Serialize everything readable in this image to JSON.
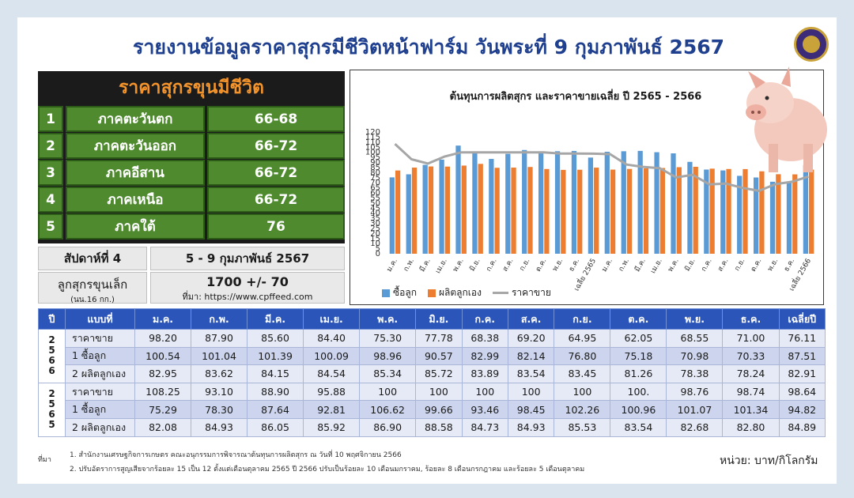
{
  "title": "รายงานข้อมูลราคาสุกรมีชีวิตหน้าฟาร์ม วันพระที่ 9 กุมภาพันธ์ 2567",
  "price_panel": {
    "heading": "ราคาสุกรขุนมีชีวิต",
    "rows": [
      {
        "num": "1",
        "region": "ภาคตะวันตก",
        "price": "66-68"
      },
      {
        "num": "2",
        "region": "ภาคตะวันออก",
        "price": "66-72"
      },
      {
        "num": "3",
        "region": "ภาคอีสาน",
        "price": "66-72"
      },
      {
        "num": "4",
        "region": "ภาคเหนือ",
        "price": "66-72"
      },
      {
        "num": "5",
        "region": "ภาคใต้",
        "price": "76"
      }
    ],
    "week_label": "สัปดาห์ที่ 4",
    "week_range": "5 - 9 กุมภาพันธ์ 2567",
    "piglet_label": "ลูกสุกรขุนเล็ก",
    "piglet_weight": "(นน.16 กก.)",
    "piglet_price": "1700 +/- 70",
    "piglet_source": "ที่มา: https://www.cpffeed.com"
  },
  "chart_data": {
    "type": "bar",
    "title": "ต้นทุนการผลิตสุกร และราคาขายเฉลี่ย ปี 2565 - 2566",
    "categories": [
      "ม.ค.",
      "ก.พ.",
      "มี.ค.",
      "เม.ย.",
      "พ.ค.",
      "มิ.ย.",
      "ก.ค.",
      "ส.ค.",
      "ก.ย.",
      "ต.ค.",
      "พ.ย.",
      "ธ.ค.",
      "เฉลี่ย 2565",
      "ม.ค.",
      "ก.พ.",
      "มี.ค.",
      "เม.ย.",
      "พ.ค.",
      "มิ.ย.",
      "ก.ค.",
      "ส.ค.",
      "ก.ย.",
      "ต.ค.",
      "พ.ย.",
      "ธ.ค.",
      "เฉลี่ย 2566"
    ],
    "series": [
      {
        "name": "ซื้อลูก",
        "type": "bar",
        "color": "#5b9bd5",
        "values": [
          75.29,
          78.3,
          87.64,
          92.81,
          106.62,
          99.66,
          93.46,
          98.45,
          102.26,
          100.96,
          101.07,
          101.34,
          94.82,
          100.54,
          101.04,
          101.39,
          100.09,
          98.96,
          90.57,
          82.99,
          82.14,
          76.8,
          75.18,
          70.98,
          70.33,
          87.51
        ]
      },
      {
        "name": "ผลิตลูกเอง",
        "type": "bar",
        "color": "#ed7d31",
        "values": [
          82.08,
          84.93,
          86.05,
          85.92,
          86.9,
          88.58,
          84.73,
          84.93,
          85.53,
          83.54,
          82.68,
          82.8,
          84.89,
          82.95,
          83.62,
          84.15,
          84.54,
          85.34,
          85.72,
          83.89,
          83.54,
          83.45,
          81.26,
          78.38,
          78.24,
          82.91
        ]
      },
      {
        "name": "ราคาขาย",
        "type": "line",
        "color": "#a6a6a6",
        "values": [
          108.25,
          93.1,
          88.9,
          95.88,
          100,
          100,
          100,
          100,
          100,
          100,
          98.76,
          98.74,
          98.64,
          98.2,
          87.9,
          85.6,
          84.4,
          75.3,
          77.78,
          68.38,
          69.2,
          64.95,
          62.05,
          68.55,
          71.0,
          76.11
        ]
      }
    ],
    "yticks": [
      0,
      5,
      10,
      15,
      20,
      25,
      30,
      35,
      40,
      45,
      50,
      55,
      60,
      65,
      70,
      75,
      80,
      85,
      90,
      95,
      100,
      105,
      110,
      115,
      120
    ],
    "ylim": [
      0,
      120
    ],
    "legend": "bottom-left",
    "grid": false
  },
  "table": {
    "headers": [
      "ปี",
      "แบบที่",
      "ม.ค.",
      "ก.พ.",
      "มี.ค.",
      "เม.ย.",
      "พ.ค.",
      "มิ.ย.",
      "ก.ค.",
      "ส.ค.",
      "ก.ย.",
      "ต.ค.",
      "พ.ย.",
      "ธ.ค.",
      "เฉลี่ยปี"
    ],
    "groups": [
      {
        "year": "2566",
        "rows": [
          {
            "label": "ราคาขาย",
            "values": [
              "98.20",
              "87.90",
              "85.60",
              "84.40",
              "75.30",
              "77.78",
              "68.38",
              "69.20",
              "64.95",
              "62.05",
              "68.55",
              "71.00",
              "76.11"
            ]
          },
          {
            "label": "1 ซื้อลูก",
            "values": [
              "100.54",
              "101.04",
              "101.39",
              "100.09",
              "98.96",
              "90.57",
              "82.99",
              "82.14",
              "76.80",
              "75.18",
              "70.98",
              "70.33",
              "87.51"
            ]
          },
          {
            "label": "2 ผลิตลูกเอง",
            "values": [
              "82.95",
              "83.62",
              "84.15",
              "84.54",
              "85.34",
              "85.72",
              "83.89",
              "83.54",
              "83.45",
              "81.26",
              "78.38",
              "78.24",
              "82.91"
            ]
          }
        ]
      },
      {
        "year": "2565",
        "rows": [
          {
            "label": "ราคาขาย",
            "values": [
              "108.25",
              "93.10",
              "88.90",
              "95.88",
              "100",
              "100",
              "100",
              "100",
              "100",
              "100.",
              "98.76",
              "98.74",
              "98.64"
            ]
          },
          {
            "label": "1 ซื้อลูก",
            "values": [
              "75.29",
              "78.30",
              "87.64",
              "92.81",
              "106.62",
              "99.66",
              "93.46",
              "98.45",
              "102.26",
              "100.96",
              "101.07",
              "101.34",
              "94.82"
            ]
          },
          {
            "label": "2 ผลิตลูกเอง",
            "values": [
              "82.08",
              "84.93",
              "86.05",
              "85.92",
              "86.90",
              "88.58",
              "84.73",
              "84.93",
              "85.53",
              "83.54",
              "82.68",
              "82.80",
              "84.89"
            ]
          }
        ]
      }
    ]
  },
  "footer": {
    "source_label": "ที่มา",
    "note1": "1. สำนักงานเศรษฐกิจการเกษตร คณะอนุกรรมการพิจารณาต้นทุนการผลิตสุกร ณ วันที่ 10 พฤศจิกายน 2566",
    "note2": "2. ปรับอัตราการสูญเสียจากร้อยละ 15 เป็น 12 ตั้งแต่เดือนตุลาคม 2565 ปี 2566 ปรับเป็นร้อยละ 10 เดือนมกราคม, ร้อยละ 8 เดือนกรกฎาคม และร้อยละ 5 เดือนตุลาคม",
    "unit": "หน่วย: บาท/กิโลกรัม"
  },
  "colors": {
    "title": "#1f3f8f",
    "panel_green": "#4f8a2f",
    "panel_heading": "#f2932b",
    "table_header": "#2b55b8"
  }
}
